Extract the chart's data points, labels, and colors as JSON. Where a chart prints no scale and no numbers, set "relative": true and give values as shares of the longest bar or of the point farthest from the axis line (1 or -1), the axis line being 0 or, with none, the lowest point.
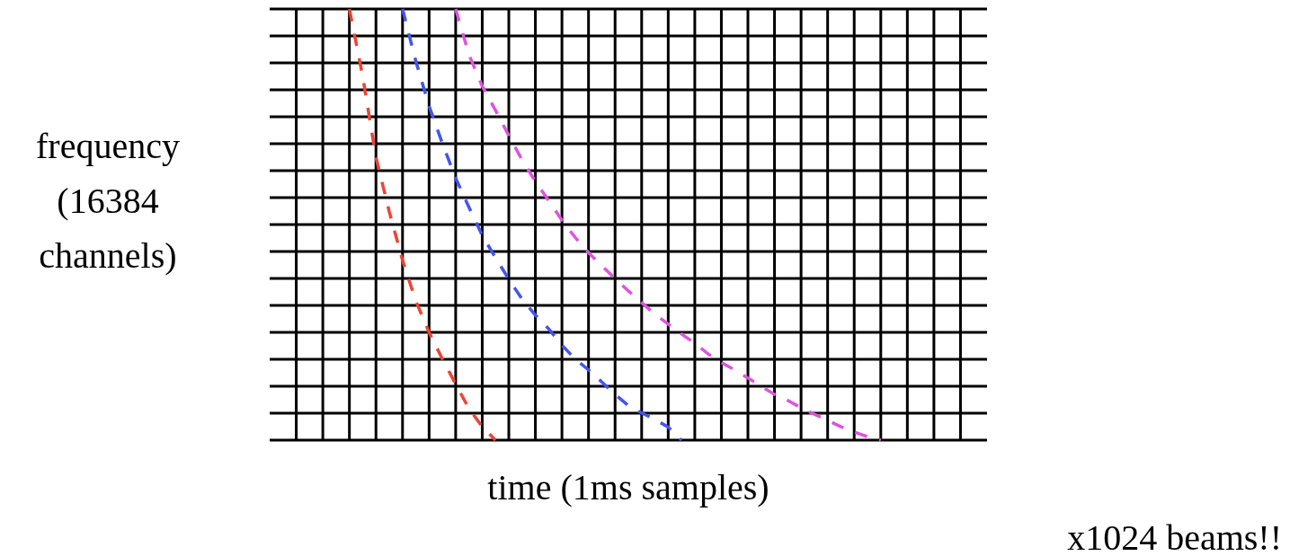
{
  "chart_data": {
    "type": "line",
    "relative": true,
    "xlabel": "time (1ms samples)",
    "ylabel": "frequency (16384 channels)",
    "annotations": [
      "x1024 beams!!"
    ],
    "grid": true,
    "line_style": "dashed",
    "marker": "none",
    "categories": [
      null,
      null,
      null,
      null,
      null,
      null,
      null,
      null,
      null,
      null,
      null,
      null,
      null,
      null,
      null,
      null,
      null,
      null,
      null,
      null,
      null,
      null,
      null,
      null,
      null,
      null,
      null,
      null,
      null,
      null,
      null,
      null,
      null,
      null,
      null,
      null,
      null,
      null,
      null,
      null,
      null,
      null,
      null,
      null,
      null,
      null,
      null,
      null,
      null,
      null,
      null,
      null,
      null,
      null,
      null
    ],
    "series": [
      {
        "color": "#ee4433",
        "values": [
          null,
          null,
          null,
          null,
          null,
          null,
          1.0,
          0.844,
          0.656,
          0.53,
          0.417,
          0.323,
          0.25,
          0.188,
          0.13,
          0.073,
          0.031,
          0,
          null,
          null,
          null,
          null,
          null,
          null,
          null,
          null,
          null,
          null,
          null,
          null,
          null,
          null,
          null,
          null,
          null,
          null,
          null,
          null,
          null,
          null,
          null,
          null,
          null,
          null,
          null,
          null,
          null,
          null,
          null,
          null,
          null,
          null,
          null,
          null,
          null
        ]
      },
      {
        "color": "#4455ee",
        "values": [
          null,
          null,
          null,
          null,
          null,
          null,
          null,
          null,
          null,
          null,
          1.0,
          0.879,
          0.775,
          0.688,
          0.608,
          0.54,
          0.475,
          0.423,
          0.373,
          0.327,
          0.29,
          0.258,
          0.22,
          0.188,
          0.163,
          0.135,
          0.106,
          0.08,
          0.063,
          0.048,
          0.03,
          0,
          null,
          null,
          null,
          null,
          null,
          null,
          null,
          null,
          null,
          null,
          null,
          null,
          null,
          null,
          null,
          null,
          null,
          null,
          null,
          null,
          null,
          null,
          null
        ]
      },
      {
        "color": "#dd55dd",
        "values": [
          null,
          null,
          null,
          null,
          null,
          null,
          null,
          null,
          null,
          null,
          null,
          null,
          null,
          null,
          1.0,
          0.894,
          0.821,
          0.765,
          0.706,
          0.65,
          0.6,
          0.556,
          0.51,
          0.47,
          0.435,
          0.404,
          0.375,
          0.346,
          0.319,
          0.292,
          0.269,
          0.246,
          0.225,
          0.2,
          0.18,
          0.163,
          0.144,
          0.125,
          0.106,
          0.092,
          0.075,
          0.06,
          0.046,
          0.031,
          0.019,
          0.008,
          0,
          null,
          null,
          null,
          null,
          null,
          null,
          null,
          null
        ]
      }
    ]
  }
}
